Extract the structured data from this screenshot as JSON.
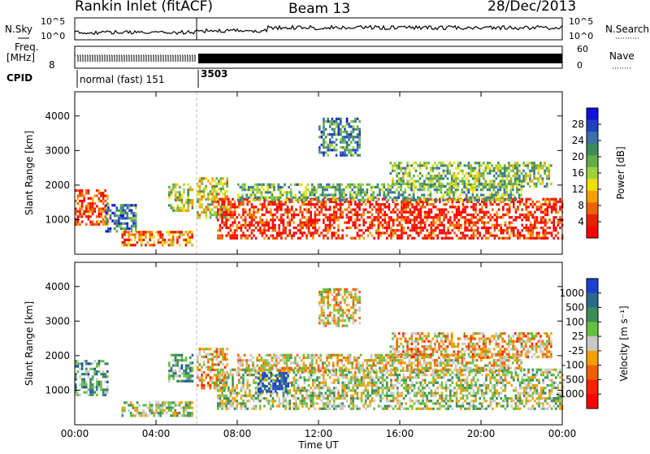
{
  "header": {
    "station": "Rankin Inlet (fitACF)",
    "beam": "Beam 13",
    "date": "28/Dec/2013"
  },
  "top_panels": {
    "nsky_label": "N.Sky",
    "nsearch_label": "N.Search",
    "freq_label_line1": "Freq.",
    "freq_label_line2": "[MHz]",
    "nave_label": "Nave",
    "cpid_label": "CPID",
    "cpid_1": "normal (fast) 151",
    "cpid_2": "3503",
    "noise_ticks_left": [
      "10^5",
      "10^0"
    ],
    "noise_ticks_right": [
      "10^5",
      "10^0"
    ],
    "freq_tick": "8",
    "nave_ticks": [
      "60",
      "0"
    ]
  },
  "chart_data": [
    {
      "type": "heatmap",
      "title": "",
      "ylabel": "Slant Range [km]",
      "xlabel": "Time UT",
      "xlim": [
        "00:00",
        "24:00"
      ],
      "ylim": [
        0,
        4700
      ],
      "yticks": [
        "1000",
        "2000",
        "3000",
        "4000"
      ],
      "xticks": [
        "00:00",
        "04:00",
        "08:00",
        "12:00",
        "16:00",
        "20:00",
        "00:00"
      ],
      "colorbar": {
        "label": "Power [dB]",
        "ticks": [
          "4",
          "8",
          "12",
          "16",
          "20",
          "24",
          "28"
        ],
        "colors": [
          "#1010e0",
          "#2040c0",
          "#3a6fb0",
          "#3c8c5a",
          "#5fae4a",
          "#9fd040",
          "#f0e000",
          "#f5a000",
          "#f06000",
          "#e82000",
          "#ff0000"
        ]
      },
      "regions": [
        {
          "t0": 0.0,
          "t1": 1.6,
          "r0": 900,
          "r1": 1900,
          "level": 0.85
        },
        {
          "t0": 1.5,
          "t1": 3.0,
          "r0": 700,
          "r1": 1500,
          "level": 0.25
        },
        {
          "t0": 2.3,
          "t1": 5.8,
          "r0": 300,
          "r1": 700,
          "level": 0.75
        },
        {
          "t0": 4.6,
          "t1": 5.8,
          "r0": 1300,
          "r1": 2100,
          "level": 0.5
        },
        {
          "t0": 6.0,
          "t1": 7.5,
          "r0": 1100,
          "r1": 2300,
          "level": 0.55
        },
        {
          "t0": 7.0,
          "t1": 24.0,
          "r0": 500,
          "r1": 1700,
          "level": 0.9
        },
        {
          "t0": 8.0,
          "t1": 22.0,
          "r0": 1600,
          "r1": 2100,
          "level": 0.4
        },
        {
          "t0": 12.0,
          "t1": 14.0,
          "r0": 2900,
          "r1": 4000,
          "level": 0.3
        },
        {
          "t0": 15.5,
          "t1": 23.5,
          "r0": 2000,
          "r1": 2700,
          "level": 0.45
        }
      ]
    },
    {
      "type": "heatmap",
      "title": "",
      "ylabel": "Slant Range [km]",
      "xlabel": "Time UT",
      "xlim": [
        "00:00",
        "24:00"
      ],
      "ylim": [
        0,
        4700
      ],
      "yticks": [
        "1000",
        "2000",
        "3000",
        "4000"
      ],
      "xticks": [
        "00:00",
        "04:00",
        "08:00",
        "12:00",
        "16:00",
        "20:00",
        "00:00"
      ],
      "colorbar": {
        "label": "Velocity [m s⁻¹]",
        "ticks": [
          "1000",
          "500",
          "100",
          "25",
          "-25",
          "-100",
          "-500",
          "-1000"
        ],
        "colors": [
          "#1a3fd0",
          "#2a6a8a",
          "#3c8c5a",
          "#66c040",
          "#c8c8c8",
          "#f5a000",
          "#f06000",
          "#ff2000",
          "#ff0000"
        ]
      },
      "regions": [
        {
          "t0": 0.0,
          "t1": 1.6,
          "r0": 900,
          "r1": 1900,
          "level": 0.3
        },
        {
          "t0": 2.3,
          "t1": 5.8,
          "r0": 300,
          "r1": 700,
          "level": 0.45
        },
        {
          "t0": 4.6,
          "t1": 5.8,
          "r0": 1300,
          "r1": 2100,
          "level": 0.3
        },
        {
          "t0": 6.0,
          "t1": 7.5,
          "r0": 1100,
          "r1": 2300,
          "level": 0.6
        },
        {
          "t0": 7.0,
          "t1": 24.0,
          "r0": 500,
          "r1": 1700,
          "level": 0.45
        },
        {
          "t0": 9.0,
          "t1": 10.5,
          "r0": 1000,
          "r1": 1600,
          "level": 0.05
        },
        {
          "t0": 8.0,
          "t1": 22.0,
          "r0": 1600,
          "r1": 2100,
          "level": 0.55
        },
        {
          "t0": 12.0,
          "t1": 14.0,
          "r0": 2900,
          "r1": 4000,
          "level": 0.55
        },
        {
          "t0": 15.5,
          "t1": 23.5,
          "r0": 2000,
          "r1": 2700,
          "level": 0.6
        }
      ]
    }
  ]
}
